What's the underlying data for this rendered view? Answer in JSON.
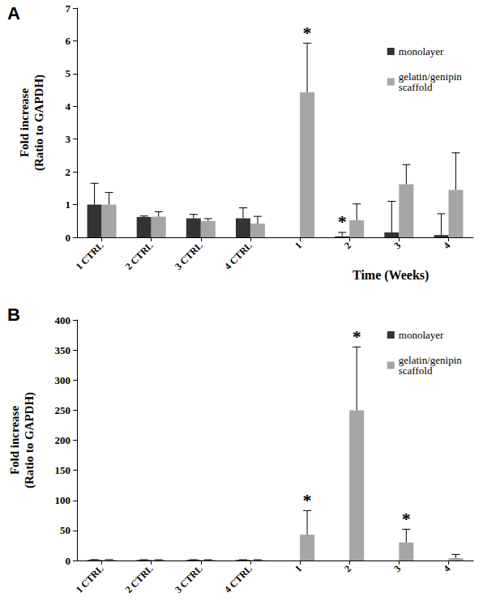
{
  "chart_data": [
    {
      "type": "bar",
      "panel_label": "A",
      "categories": [
        "1 CTRL",
        "2 CTRL",
        "3 CTRL",
        "4 CTRL",
        "1",
        "2",
        "3",
        "4"
      ],
      "x_label": "Time (Weeks)",
      "y_label": "Fold increase\n(Ratio to GAPDH)",
      "ylim": [
        0,
        7
      ],
      "yticks": [
        0,
        1,
        2,
        3,
        4,
        5,
        6,
        7
      ],
      "grid": false,
      "legend": "upper right",
      "series": [
        {
          "name": "monolayer",
          "color": "#333333",
          "values": [
            1.0,
            0.62,
            0.58,
            0.58,
            0,
            0.03,
            0.15,
            0.07
          ],
          "errors": [
            0.65,
            0.03,
            0.12,
            0.32,
            null,
            0.12,
            0.95,
            0.65
          ]
        },
        {
          "name": "gelatin/genipin scaffold",
          "color": "#a6a6a6",
          "values": [
            1.0,
            0.63,
            0.5,
            0.42,
            4.43,
            0.52,
            1.62,
            1.45
          ],
          "errors": [
            0.37,
            0.15,
            0.07,
            0.22,
            1.5,
            0.5,
            0.6,
            1.13
          ]
        }
      ],
      "annotations": [
        {
          "text": "*",
          "category": "1",
          "series": "gelatin/genipin scaffold"
        },
        {
          "text": "*",
          "category": "2",
          "series": "monolayer"
        }
      ]
    },
    {
      "type": "bar",
      "panel_label": "B",
      "categories": [
        "1 CTRL",
        "2 CTRL",
        "3 CTRL",
        "4 CTRL",
        "1",
        "2",
        "3",
        "4"
      ],
      "y_label": "Fold increase\n(Ratio to GAPDH)",
      "ylim": [
        0,
        400
      ],
      "yticks": [
        0,
        50,
        100,
        150,
        200,
        250,
        300,
        350,
        400
      ],
      "grid": false,
      "legend": "upper right",
      "series": [
        {
          "name": "monolayer",
          "color": "#333333",
          "values": [
            1,
            1,
            1,
            1,
            0,
            0,
            0,
            0
          ],
          "errors": [
            0.5,
            0.3,
            0.3,
            0.3,
            null,
            null,
            null,
            null
          ]
        },
        {
          "name": "gelatin/genipin scaffold",
          "color": "#a6a6a6",
          "values": [
            1,
            1,
            1,
            1,
            43,
            250,
            30,
            4
          ],
          "errors": [
            0.4,
            0.3,
            0.3,
            0.3,
            40,
            105,
            22,
            6
          ]
        }
      ],
      "annotations": [
        {
          "text": "*",
          "category": "1",
          "series": "gelatin/genipin scaffold"
        },
        {
          "text": "*",
          "category": "2",
          "series": "gelatin/genipin scaffold"
        },
        {
          "text": "*",
          "category": "3",
          "series": "gelatin/genipin scaffold"
        }
      ]
    }
  ]
}
